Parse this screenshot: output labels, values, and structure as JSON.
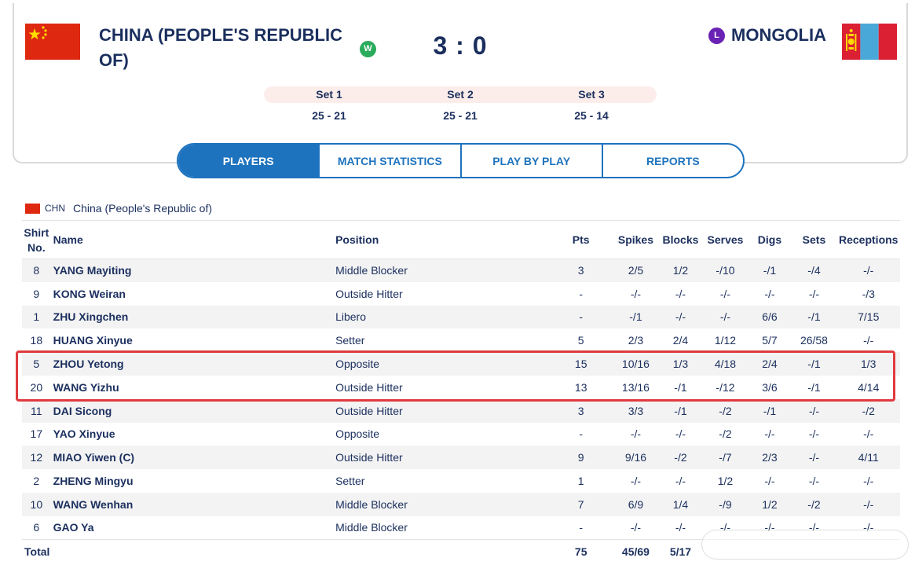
{
  "match": {
    "home_team": "CHINA (PEOPLE'S REPUBLIC OF)",
    "away_team": "MONGOLIA",
    "home_badge": "W",
    "away_badge": "L",
    "score": "3 : 0",
    "sets": [
      {
        "label": "Set 1",
        "score": "25 - 21"
      },
      {
        "label": "Set 2",
        "score": "25 - 21"
      },
      {
        "label": "Set 3",
        "score": "25 - 14"
      }
    ]
  },
  "tabs": [
    {
      "label": "PLAYERS",
      "active": true
    },
    {
      "label": "MATCH STATISTICS",
      "active": false
    },
    {
      "label": "PLAY BY PLAY",
      "active": false
    },
    {
      "label": "REPORTS",
      "active": false
    }
  ],
  "team_section": {
    "code": "CHN",
    "name": "China (People's Republic of)"
  },
  "table": {
    "headers": {
      "shirt": "Shirt No.",
      "name": "Name",
      "position": "Position",
      "pts": "Pts",
      "spikes": "Spikes",
      "blocks": "Blocks",
      "serves": "Serves",
      "digs": "Digs",
      "sets": "Sets",
      "receptions": "Receptions"
    },
    "rows": [
      {
        "no": "8",
        "name": "YANG Mayiting",
        "position": "Middle Blocker",
        "pts": "3",
        "spikes": "2/5",
        "blocks": "1/2",
        "serves": "-/10",
        "digs": "-/1",
        "sets": "-/4",
        "receptions": "-/-"
      },
      {
        "no": "9",
        "name": "KONG Weiran",
        "position": "Outside Hitter",
        "pts": "-",
        "spikes": "-/-",
        "blocks": "-/-",
        "serves": "-/-",
        "digs": "-/-",
        "sets": "-/-",
        "receptions": "-/3"
      },
      {
        "no": "1",
        "name": "ZHU Xingchen",
        "position": "Libero",
        "pts": "-",
        "spikes": "-/1",
        "blocks": "-/-",
        "serves": "-/-",
        "digs": "6/6",
        "sets": "-/1",
        "receptions": "7/15"
      },
      {
        "no": "18",
        "name": "HUANG Xinyue",
        "position": "Setter",
        "pts": "5",
        "spikes": "2/3",
        "blocks": "2/4",
        "serves": "1/12",
        "digs": "5/7",
        "sets": "26/58",
        "receptions": "-/-"
      },
      {
        "no": "5",
        "name": "ZHOU Yetong",
        "position": "Opposite",
        "pts": "15",
        "spikes": "10/16",
        "blocks": "1/3",
        "serves": "4/18",
        "digs": "2/4",
        "sets": "-/1",
        "receptions": "1/3"
      },
      {
        "no": "20",
        "name": "WANG Yizhu",
        "position": "Outside Hitter",
        "pts": "13",
        "spikes": "13/16",
        "blocks": "-/1",
        "serves": "-/12",
        "digs": "3/6",
        "sets": "-/1",
        "receptions": "4/14"
      },
      {
        "no": "11",
        "name": "DAI Sicong",
        "position": "Outside Hitter",
        "pts": "3",
        "spikes": "3/3",
        "blocks": "-/1",
        "serves": "-/2",
        "digs": "-/1",
        "sets": "-/-",
        "receptions": "-/2"
      },
      {
        "no": "17",
        "name": "YAO Xinyue",
        "position": "Opposite",
        "pts": "-",
        "spikes": "-/-",
        "blocks": "-/-",
        "serves": "-/2",
        "digs": "-/-",
        "sets": "-/-",
        "receptions": "-/-"
      },
      {
        "no": "12",
        "name": "MIAO Yiwen  (C)",
        "position": "Outside Hitter",
        "pts": "9",
        "spikes": "9/16",
        "blocks": "-/2",
        "serves": "-/7",
        "digs": "2/3",
        "sets": "-/-",
        "receptions": "4/11"
      },
      {
        "no": "2",
        "name": "ZHENG Mingyu",
        "position": "Setter",
        "pts": "1",
        "spikes": "-/-",
        "blocks": "-/-",
        "serves": "1/2",
        "digs": "-/-",
        "sets": "-/-",
        "receptions": "-/-"
      },
      {
        "no": "10",
        "name": "WANG Wenhan",
        "position": "Middle Blocker",
        "pts": "7",
        "spikes": "6/9",
        "blocks": "1/4",
        "serves": "-/9",
        "digs": "1/2",
        "sets": "-/2",
        "receptions": "-/-"
      },
      {
        "no": "6",
        "name": "GAO Ya",
        "position": "Middle Blocker",
        "pts": "-",
        "spikes": "-/-",
        "blocks": "-/-",
        "serves": "-/-",
        "digs": "-/-",
        "sets": "-/-",
        "receptions": "-/-"
      }
    ],
    "total": {
      "label": "Total",
      "pts": "75",
      "spikes": "45/69",
      "blocks": "5/17"
    }
  },
  "colors": {
    "accent": "#1e73be",
    "navy": "#1b2f5e",
    "win": "#2bab5c",
    "loss": "#6a22b5",
    "highlight": "#e03a3e"
  },
  "icons": {
    "home_flag": "china-flag-icon",
    "away_flag": "mongolia-flag-icon"
  }
}
